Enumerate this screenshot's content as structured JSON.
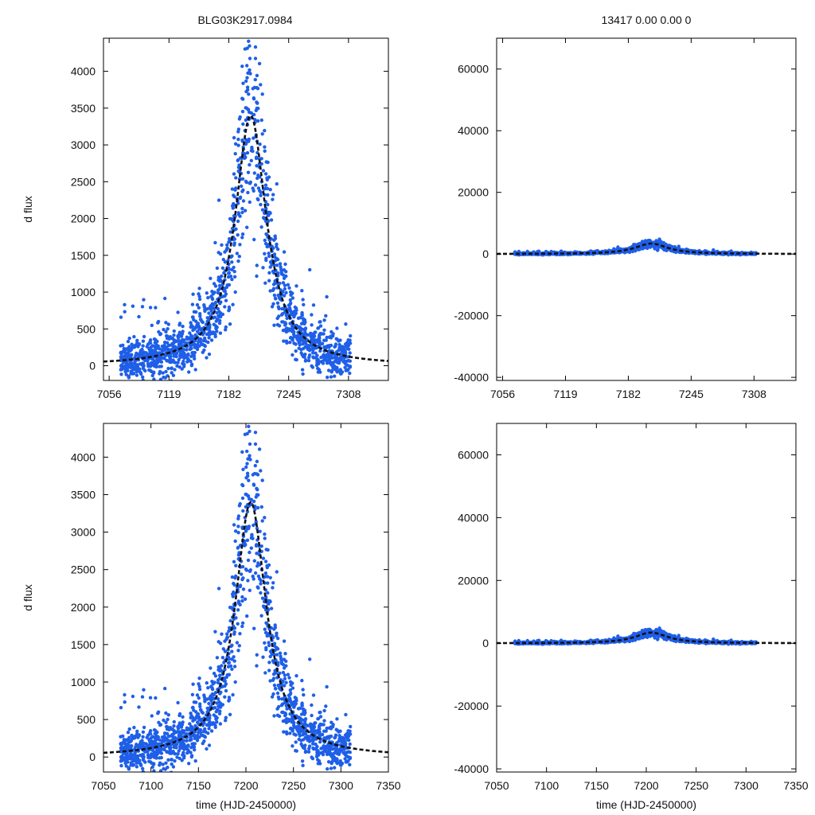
{
  "colors": {
    "points": "#1f5fe8",
    "fit_curve": "#111111",
    "frame": "#000000",
    "background": "#ffffff"
  },
  "header": {
    "left_title": "BLG03K2917.0984",
    "right_title": "13417  0.00  0.00  0"
  },
  "chart_data": [
    {
      "id": "top-left",
      "type": "scatter",
      "title": "BLG03K2917.0984",
      "xlabel": "",
      "ylabel": "d flux",
      "xlim": [
        7050,
        7350
      ],
      "ylim": [
        -200,
        4450
      ],
      "xticks": [
        7056,
        7119,
        7182,
        7245,
        7308
      ],
      "yticks": [
        0,
        500,
        1000,
        1500,
        2000,
        2500,
        3000,
        3500,
        4000
      ],
      "series": [
        {
          "name": "data",
          "style": "points"
        },
        {
          "name": "model",
          "style": "dashed-line",
          "peak_time": 7205,
          "peak_flux": 3400,
          "fwhm": 44
        }
      ]
    },
    {
      "id": "top-right",
      "type": "scatter",
      "title": "13417  0.00  0.00  0",
      "xlabel": "",
      "ylabel": "",
      "xlim": [
        7050,
        7350
      ],
      "ylim": [
        -41000,
        70000
      ],
      "xticks": [
        7056,
        7119,
        7182,
        7245,
        7308
      ],
      "yticks": [
        -40000,
        -20000,
        0,
        20000,
        40000,
        60000
      ],
      "series": [
        {
          "name": "data",
          "style": "points"
        },
        {
          "name": "model",
          "style": "dashed-line",
          "peak_time": 7205,
          "peak_flux": 3400,
          "fwhm": 44
        }
      ]
    },
    {
      "id": "bottom-left",
      "type": "scatter",
      "title": "",
      "xlabel": "time (HJD-2450000)",
      "ylabel": "d flux",
      "xlim": [
        7050,
        7350
      ],
      "ylim": [
        -200,
        4450
      ],
      "xticks": [
        7050,
        7100,
        7150,
        7200,
        7250,
        7300,
        7350
      ],
      "yticks": [
        0,
        500,
        1000,
        1500,
        2000,
        2500,
        3000,
        3500,
        4000
      ],
      "series": [
        {
          "name": "data",
          "style": "points"
        },
        {
          "name": "model",
          "style": "dashed-line",
          "peak_time": 7205,
          "peak_flux": 3400,
          "fwhm": 44
        }
      ]
    },
    {
      "id": "bottom-right",
      "type": "scatter",
      "title": "",
      "xlabel": "time (HJD-2450000)",
      "ylabel": "",
      "xlim": [
        7050,
        7350
      ],
      "ylim": [
        -41000,
        70000
      ],
      "xticks": [
        7050,
        7100,
        7150,
        7200,
        7250,
        7300,
        7350
      ],
      "yticks": [
        -40000,
        -20000,
        0,
        20000,
        40000,
        60000
      ],
      "series": [
        {
          "name": "data",
          "style": "points"
        },
        {
          "name": "model",
          "style": "dashed-line",
          "peak_time": 7205,
          "peak_flux": 3400,
          "fwhm": 44
        }
      ]
    }
  ]
}
